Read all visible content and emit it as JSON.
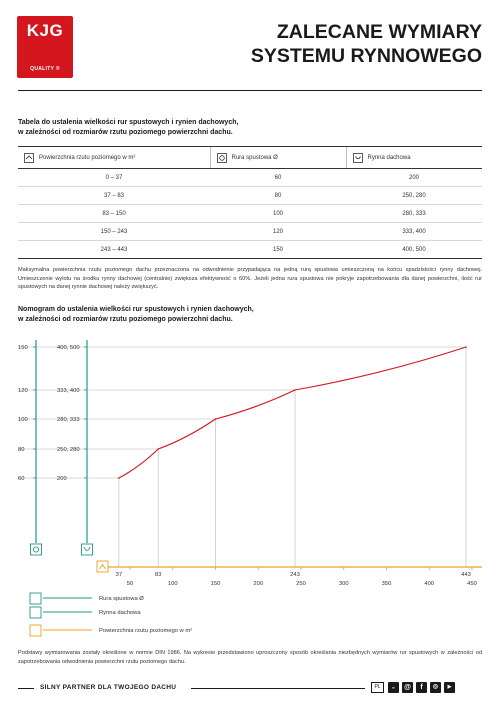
{
  "logo": {
    "brand": "KJG",
    "tagline": "QUALITY ®"
  },
  "title": {
    "line1": "ZALECANE WYMIARY",
    "line2": "SYSTEMU RYNNOWEGO"
  },
  "table_section": {
    "heading_line1": "Tabela do ustalenia wielkości rur spustowych i rynien dachowych,",
    "heading_line2": "w zależności od rozmiarów rzutu poziomego powierzchni dachu.",
    "columns": [
      "Powierzchnia rzutu poziomego w m²",
      "Rura spustowa Ø",
      "Rynna dachowa"
    ],
    "rows": [
      [
        "0 – 37",
        "60",
        "200"
      ],
      [
        "37 – 83",
        "80",
        "250, 280"
      ],
      [
        "83 – 150",
        "100",
        "280, 333"
      ],
      [
        "150 – 243",
        "120",
        "333, 400"
      ],
      [
        "243 – 443",
        "150",
        "400, 500"
      ]
    ],
    "note": "Maksymalna powierzchnia rzutu poziomego dachu przeznaczona na odwodnienie przypadająca na jedną rurą spustowa umieszczoną na końcu spadzistości rynny dachowej. Umieszczenie wylotu na środku rynny dachowej (centralnie) zwiększa efektywność o 60%. Jeżeli jedna rura spustowa nie pokryje zapotrzebowania dla danej powierzchni, ilość rur spustowych na danej rynnie dachowej należy zwiększyć."
  },
  "nomogram": {
    "heading_line1": "Nomogram do ustalenia wielkości rur spustowych i rynien dachowych,",
    "heading_line2": "w zależności od rozmiarów rzutu poziomego powierzchni dachu.",
    "legend": [
      {
        "label": "Rura spustowa Ø",
        "color": "#1f9a8a",
        "icon": "circle-pipe-icon"
      },
      {
        "label": "Rynna dachowa",
        "color": "#1f9a8a",
        "icon": "gutter-icon"
      },
      {
        "label": "Powierzchnia rzutu poziomego w m²",
        "color": "#f0a020",
        "icon": "roof-icon"
      }
    ],
    "colors": {
      "curve": "#d4161f",
      "axis_teal": "#1f9a8a",
      "axis_orange": "#f0a020",
      "grid": "#b5b5b5"
    }
  },
  "chart_data": {
    "type": "line",
    "xlabel": "Powierzchnia rzutu poziomego w m²",
    "x_ticks": [
      50,
      100,
      150,
      200,
      250,
      300,
      350,
      400,
      450
    ],
    "x_marks": [
      37,
      83,
      243,
      443
    ],
    "pipe_ticks": [
      150,
      120,
      100,
      80,
      60
    ],
    "gutter_ticks": [
      "400, 500",
      "333, 400",
      "280, 333",
      "250, 280",
      "200"
    ],
    "xlim": [
      25,
      455
    ],
    "series": [
      {
        "x": [
          37,
          83,
          150,
          243,
          443
        ],
        "y": [
          60,
          80,
          100,
          120,
          150
        ]
      }
    ]
  },
  "footer": {
    "note": "Podstawy wymiarowania zostały określone w normie DIN 1986. Na wykresie przedstawiono uproszczony sposób określania niezbędnych wymiarów rur spustowych w zależności od zapotrzebowania odwodnienia powierzchni rzutu poziomego dachu.",
    "slogan": "SILNY PARTNER DLA TWOJEGO DACHU",
    "lang": "PL"
  }
}
